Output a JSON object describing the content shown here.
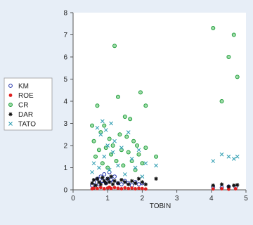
{
  "chart_data": {
    "type": "scatter",
    "xlabel": "TOBIN",
    "ylabel": "",
    "xlim": [
      0,
      5
    ],
    "ylim": [
      0,
      8
    ],
    "xticks": [
      0,
      1,
      2,
      3,
      4,
      5
    ],
    "yticks": [
      0,
      1,
      2,
      3,
      4,
      5,
      6,
      7,
      8
    ],
    "grid": false,
    "legend_position": "left",
    "series": [
      {
        "name": "KM",
        "marker": "open-circle",
        "color": "#1f2fa8",
        "points": [
          [
            0.55,
            0.2
          ],
          [
            0.6,
            0.35
          ],
          [
            0.7,
            0.5
          ],
          [
            0.75,
            0.25
          ],
          [
            0.8,
            0.6
          ],
          [
            0.85,
            0.4
          ],
          [
            0.9,
            0.7
          ],
          [
            0.95,
            0.3
          ],
          [
            1.0,
            0.5
          ],
          [
            1.05,
            0.8
          ],
          [
            1.1,
            0.45
          ],
          [
            1.15,
            0.35
          ],
          [
            1.2,
            0.6
          ],
          [
            1.3,
            0.3
          ],
          [
            1.4,
            0.25
          ],
          [
            1.5,
            0.4
          ],
          [
            1.6,
            0.3
          ],
          [
            1.7,
            0.2
          ],
          [
            1.8,
            0.35
          ],
          [
            1.9,
            0.25
          ],
          [
            2.0,
            0.3
          ],
          [
            4.05,
            0.12
          ],
          [
            4.3,
            0.1
          ],
          [
            4.5,
            0.15
          ],
          [
            4.7,
            0.12
          ]
        ]
      },
      {
        "name": "ROE",
        "marker": "filled-circle",
        "color": "#e02020",
        "points": [
          [
            0.55,
            0.05
          ],
          [
            0.6,
            0.08
          ],
          [
            0.7,
            0.06
          ],
          [
            0.8,
            0.1
          ],
          [
            0.9,
            0.05
          ],
          [
            1.0,
            0.08
          ],
          [
            1.05,
            0.12
          ],
          [
            1.1,
            0.06
          ],
          [
            1.2,
            0.1
          ],
          [
            1.3,
            0.07
          ],
          [
            1.4,
            0.05
          ],
          [
            1.5,
            0.09
          ],
          [
            1.6,
            0.06
          ],
          [
            1.7,
            0.08
          ],
          [
            1.8,
            0.05
          ],
          [
            1.9,
            0.07
          ],
          [
            2.0,
            0.06
          ],
          [
            2.1,
            0.04
          ],
          [
            4.05,
            0.04
          ],
          [
            4.3,
            0.05
          ],
          [
            4.5,
            0.03
          ],
          [
            4.7,
            0.05
          ]
        ]
      },
      {
        "name": "CR",
        "marker": "filled-circle-outlined",
        "color": "#1f9d3a",
        "points": [
          [
            0.55,
            2.9
          ],
          [
            0.6,
            2.2
          ],
          [
            0.65,
            1.5
          ],
          [
            0.7,
            3.8
          ],
          [
            0.75,
            1.8
          ],
          [
            0.8,
            2.6
          ],
          [
            0.85,
            1.2
          ],
          [
            0.9,
            2.9
          ],
          [
            0.95,
            1.9
          ],
          [
            1.0,
            1.0
          ],
          [
            1.05,
            2.3
          ],
          [
            1.1,
            1.6
          ],
          [
            1.15,
            2.0
          ],
          [
            1.2,
            6.5
          ],
          [
            1.25,
            1.3
          ],
          [
            1.3,
            4.2
          ],
          [
            1.35,
            2.5
          ],
          [
            1.4,
            1.8
          ],
          [
            1.45,
            1.1
          ],
          [
            1.5,
            3.3
          ],
          [
            1.55,
            2.4
          ],
          [
            1.6,
            1.7
          ],
          [
            1.65,
            3.2
          ],
          [
            1.7,
            1.3
          ],
          [
            1.75,
            2.2
          ],
          [
            1.8,
            0.9
          ],
          [
            1.85,
            2.0
          ],
          [
            1.9,
            1.6
          ],
          [
            1.95,
            4.4
          ],
          [
            2.0,
            1.2
          ],
          [
            2.1,
            3.8
          ],
          [
            2.1,
            1.9
          ],
          [
            2.4,
            1.5
          ],
          [
            4.05,
            7.3
          ],
          [
            4.3,
            4.0
          ],
          [
            4.5,
            6.0
          ],
          [
            4.65,
            7.0
          ],
          [
            4.75,
            5.1
          ]
        ]
      },
      {
        "name": "DAR",
        "marker": "star",
        "color": "#111111",
        "points": [
          [
            0.55,
            0.3
          ],
          [
            0.6,
            0.45
          ],
          [
            0.65,
            0.2
          ],
          [
            0.7,
            0.5
          ],
          [
            0.75,
            0.35
          ],
          [
            0.8,
            0.25
          ],
          [
            0.85,
            0.55
          ],
          [
            0.9,
            0.4
          ],
          [
            0.95,
            0.3
          ],
          [
            1.0,
            0.5
          ],
          [
            1.05,
            0.35
          ],
          [
            1.1,
            0.6
          ],
          [
            1.15,
            0.25
          ],
          [
            1.2,
            0.4
          ],
          [
            1.3,
            0.3
          ],
          [
            1.4,
            0.45
          ],
          [
            1.5,
            0.35
          ],
          [
            1.6,
            0.25
          ],
          [
            1.7,
            0.4
          ],
          [
            1.8,
            0.3
          ],
          [
            1.9,
            0.5
          ],
          [
            2.0,
            0.35
          ],
          [
            2.1,
            0.25
          ],
          [
            2.4,
            0.5
          ],
          [
            4.05,
            0.2
          ],
          [
            4.3,
            0.25
          ],
          [
            4.5,
            0.15
          ],
          [
            4.65,
            0.2
          ],
          [
            4.75,
            0.22
          ]
        ]
      },
      {
        "name": "TATO",
        "marker": "x",
        "color": "#2a9bb0",
        "points": [
          [
            0.55,
            0.8
          ],
          [
            0.6,
            1.2
          ],
          [
            0.7,
            2.8
          ],
          [
            0.75,
            1.0
          ],
          [
            0.8,
            2.5
          ],
          [
            0.85,
            3.1
          ],
          [
            0.9,
            1.5
          ],
          [
            0.95,
            2.7
          ],
          [
            1.0,
            2.0
          ],
          [
            1.05,
            0.9
          ],
          [
            1.1,
            3.0
          ],
          [
            1.15,
            1.7
          ],
          [
            1.2,
            2.2
          ],
          [
            1.3,
            1.1
          ],
          [
            1.4,
            1.9
          ],
          [
            1.5,
            0.7
          ],
          [
            1.6,
            2.6
          ],
          [
            1.7,
            1.4
          ],
          [
            1.8,
            1.0
          ],
          [
            1.9,
            1.8
          ],
          [
            2.0,
            0.6
          ],
          [
            2.1,
            1.2
          ],
          [
            2.4,
            1.1
          ],
          [
            4.05,
            1.3
          ],
          [
            4.3,
            1.6
          ],
          [
            4.5,
            1.5
          ],
          [
            4.65,
            1.4
          ],
          [
            4.75,
            1.5
          ]
        ]
      }
    ]
  }
}
